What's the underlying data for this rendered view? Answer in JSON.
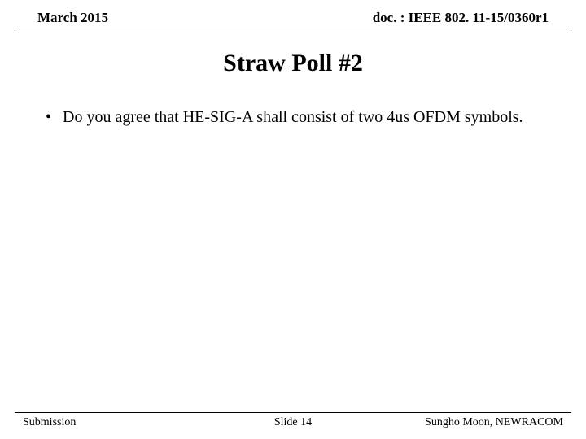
{
  "header": {
    "left": "March 2015",
    "right": "doc. : IEEE 802. 11-15/0360r1"
  },
  "title": "Straw Poll #2",
  "content": {
    "bullet_marker": "•",
    "bullet_text": "Do you agree that HE-SIG-A shall consist of two 4us OFDM symbols."
  },
  "footer": {
    "left": "Submission",
    "center": "Slide 14",
    "right": "Sungho Moon, NEWRACOM"
  },
  "colors": {
    "text": "#000000",
    "background": "#ffffff",
    "rule": "#000000"
  }
}
